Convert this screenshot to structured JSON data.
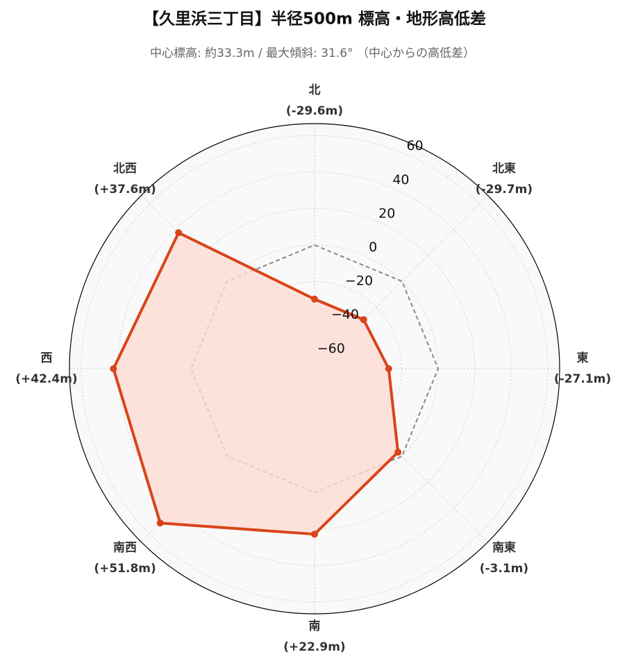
{
  "chart_data": {
    "type": "radar",
    "title": "【久里浜三丁目】半径500m 標高・地形高低差",
    "subtitle": "中心標高: 約33.3m / 最大傾斜: 31.6° （中心からの高低差）",
    "categories": [
      "北",
      "北東",
      "東",
      "南東",
      "南",
      "南西",
      "西",
      "北西"
    ],
    "values": [
      -29.6,
      -29.7,
      -27.1,
      -3.1,
      22.9,
      51.8,
      42.4,
      37.6
    ],
    "value_labels": [
      "(-29.6m)",
      "(-29.7m)",
      "(-27.1m)",
      "(-3.1m)",
      "(+22.9m)",
      "(+51.8m)",
      "(+42.4m)",
      "(+37.6m)"
    ],
    "color": "#d9441a",
    "fill_color": "#fcdcd3",
    "ylim": [
      -67.7,
      66.5
    ],
    "yticks": [
      {
        "value": -60,
        "label": "−60"
      },
      {
        "value": -40,
        "label": "−40"
      },
      {
        "value": -20,
        "label": "−20"
      },
      0,
      20,
      40,
      60
    ],
    "grid": true
  }
}
